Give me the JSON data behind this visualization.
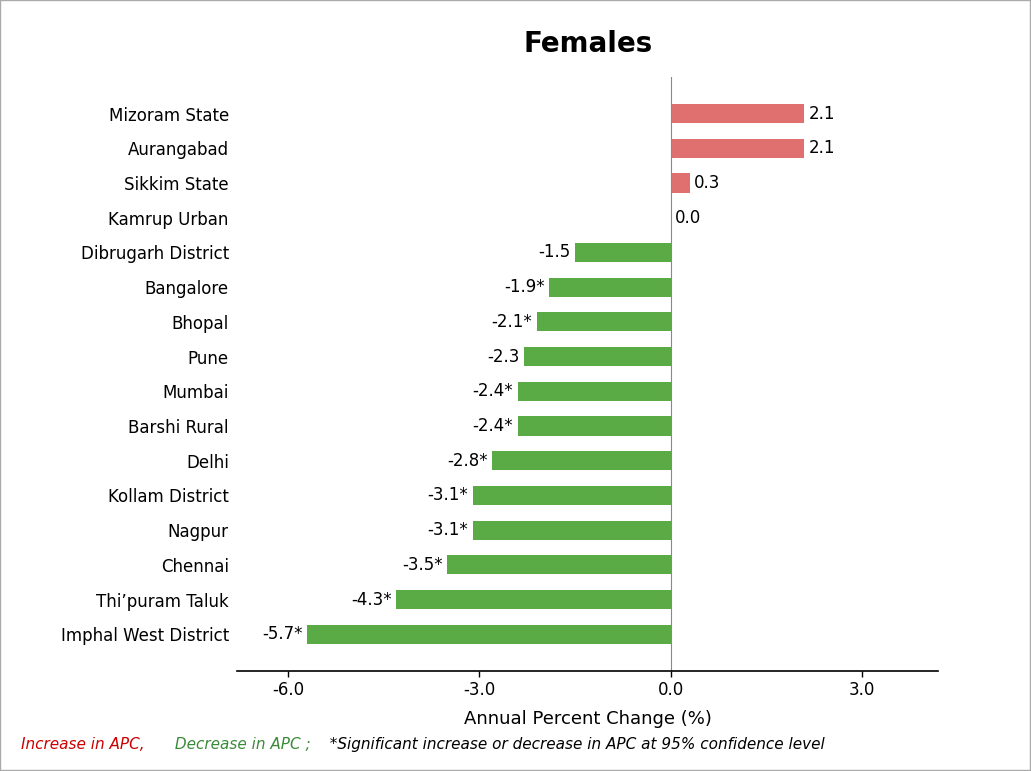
{
  "title": "Females",
  "categories": [
    "Mizoram State",
    "Aurangabad",
    "Sikkim State",
    "Kamrup Urban",
    "Dibrugarh District",
    "Bangalore",
    "Bhopal",
    "Pune",
    "Mumbai",
    "Barshi Rural",
    "Delhi",
    "Kollam District",
    "Nagpur",
    "Chennai",
    "Thi’puram Taluk",
    "Imphal West District"
  ],
  "values": [
    2.1,
    2.1,
    0.3,
    0.0,
    -1.5,
    -1.9,
    -2.1,
    -2.3,
    -2.4,
    -2.4,
    -2.8,
    -3.1,
    -3.1,
    -3.5,
    -4.3,
    -5.7
  ],
  "labels": [
    "2.1",
    "2.1",
    "0.3",
    "0.0",
    "-1.5",
    "-1.9*",
    "-2.1*",
    "-2.3",
    "-2.4*",
    "-2.4*",
    "-2.8*",
    "-3.1*",
    "-3.1*",
    "-3.5*",
    "-4.3*",
    "-5.7*"
  ],
  "colors": [
    "#e07070",
    "#e07070",
    "#e07070",
    "#e07070",
    "#5aaa45",
    "#5aaa45",
    "#5aaa45",
    "#5aaa45",
    "#5aaa45",
    "#5aaa45",
    "#5aaa45",
    "#5aaa45",
    "#5aaa45",
    "#5aaa45",
    "#5aaa45",
    "#5aaa45"
  ],
  "xlabel": "Annual Percent Change (%)",
  "xlim": [
    -6.8,
    4.2
  ],
  "xticks": [
    -6.0,
    -3.0,
    0.0,
    3.0
  ],
  "xtick_labels": [
    "-6.0",
    "-3.0",
    "0.0",
    "3.0"
  ],
  "title_fontsize": 20,
  "axis_fontsize": 13,
  "tick_fontsize": 12,
  "ytick_fontsize": 12,
  "label_fontsize": 12,
  "bar_height": 0.55,
  "background_color": "#ffffff",
  "footer_increase": "Increase in APC,",
  "footer_decrease": " Decrease in APC ;",
  "footer_note": "  *Significant increase or decrease in APC at 95% confidence level",
  "footer_color_increase": "#cc0000",
  "footer_color_decrease": "#3a8a3a",
  "footer_color_note": "#000000",
  "footer_fontsize": 11,
  "border_color": "#aaaaaa",
  "border_linewidth": 1.5
}
